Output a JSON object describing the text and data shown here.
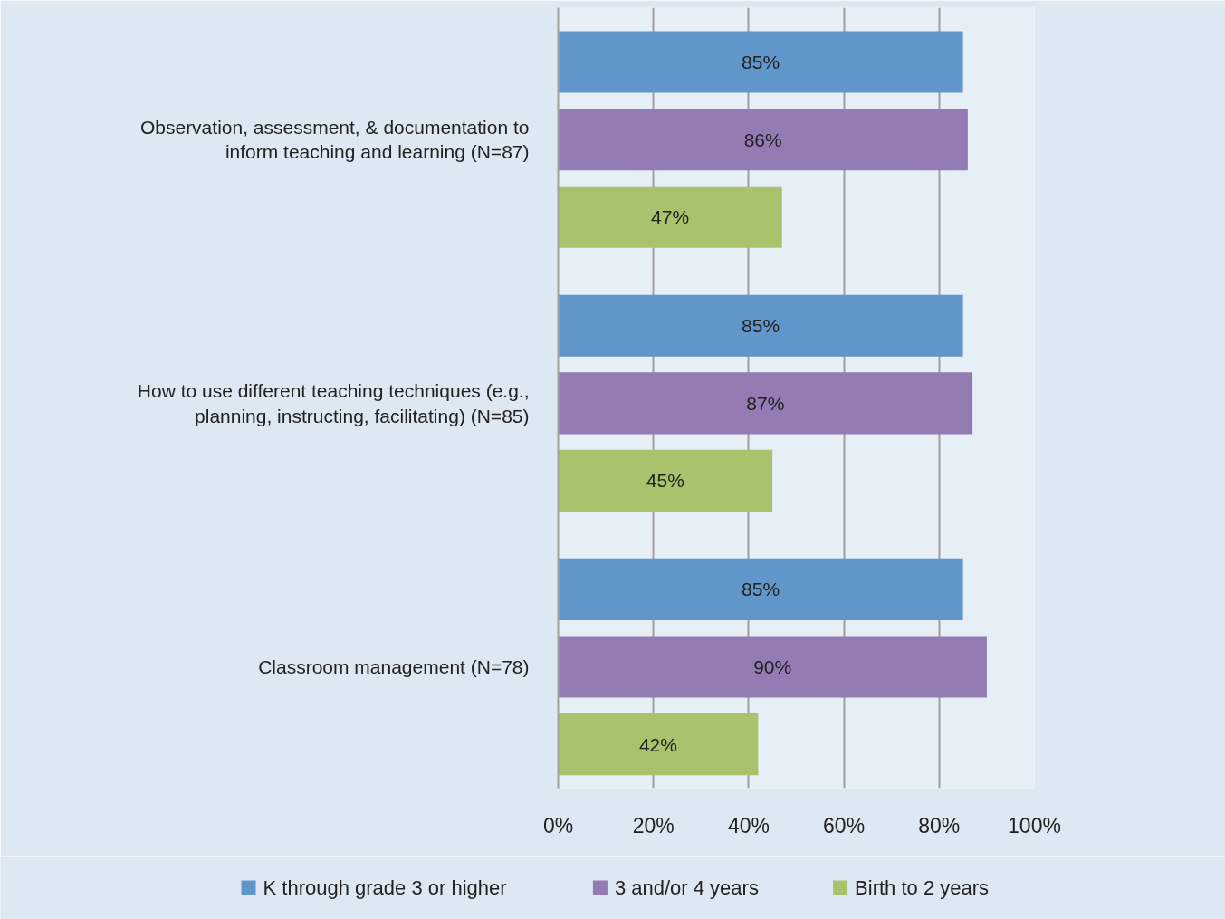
{
  "chart_data": {
    "type": "bar",
    "orientation": "horizontal",
    "categories": [
      "Observation, assessment, & documentation to inform teaching and learning (N=87)",
      "How to use different teaching techniques (e.g., planning, instructing, facilitating) (N=85)",
      "Classroom management (N=78)"
    ],
    "series": [
      {
        "name": "K through grade 3 or higher",
        "color": "#6096ca",
        "values": [
          85,
          85,
          85
        ],
        "value_labels": [
          "85%",
          "85%",
          "85%"
        ]
      },
      {
        "name": "3 and/or 4 years",
        "color": "#957bb3",
        "values": [
          86,
          87,
          90
        ],
        "value_labels": [
          "86%",
          "87%",
          "90%"
        ]
      },
      {
        "name": "Birth to 2 years",
        "color": "#a9c36c",
        "values": [
          47,
          45,
          42
        ],
        "value_labels": [
          "47%",
          "45%",
          "42%"
        ]
      }
    ],
    "xlim": [
      0,
      100
    ],
    "xticks": [
      {
        "value": 0,
        "label": "0%"
      },
      {
        "value": 20,
        "label": "20%"
      },
      {
        "value": 40,
        "label": "40%"
      },
      {
        "value": 60,
        "label": "60%"
      },
      {
        "value": 80,
        "label": "80%"
      },
      {
        "value": 100,
        "label": "100%"
      }
    ],
    "grid": "x",
    "legend": "bottom"
  }
}
